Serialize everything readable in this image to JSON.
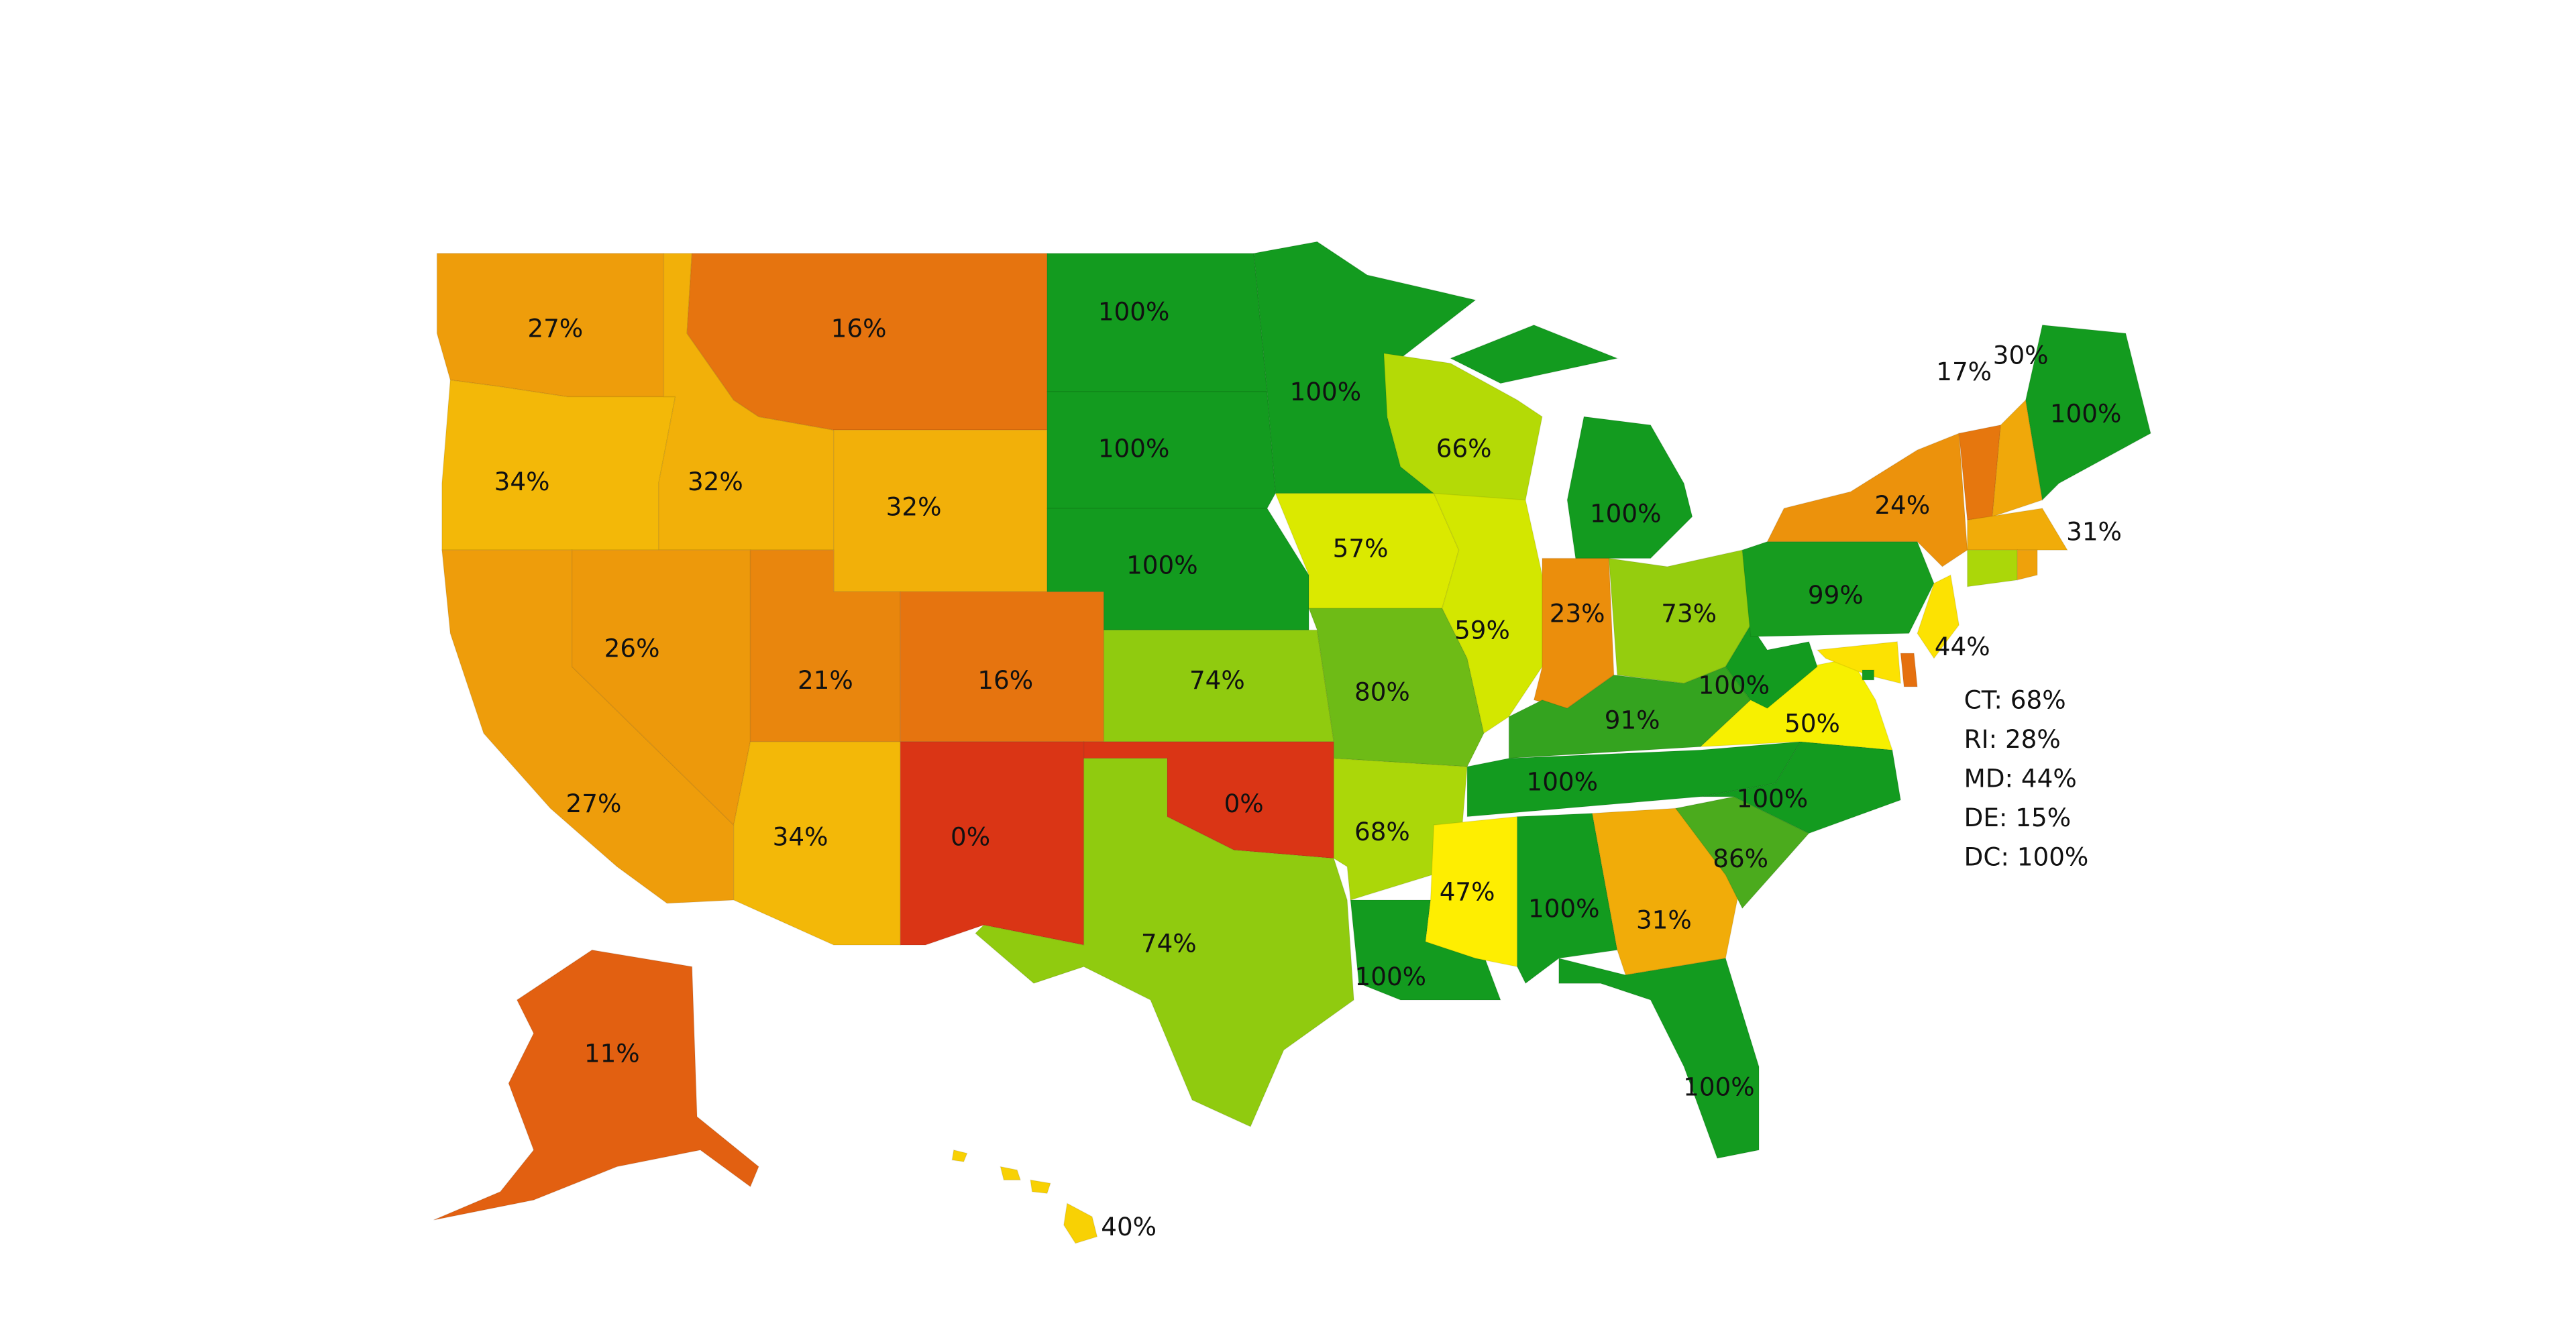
{
  "chart_data": {
    "type": "choropleth",
    "values": [
      27,
      34,
      32,
      16,
      32,
      27,
      26,
      21,
      34,
      16,
      0,
      100,
      100,
      100,
      74,
      0,
      74,
      100,
      57,
      80,
      68,
      100,
      66,
      59,
      100,
      23,
      73,
      91,
      100,
      47,
      100,
      31,
      100,
      86,
      100,
      50,
      100,
      99,
      24,
      17,
      30,
      100,
      31,
      68,
      28,
      44,
      15,
      44,
      100,
      11,
      40
    ],
    "value_labels": [
      "27%",
      "34%",
      "32%",
      "16%",
      "32%",
      "27%",
      "26%",
      "21%",
      "34%",
      "16%",
      "0%",
      "100%",
      "100%",
      "100%",
      "74%",
      "0%",
      "74%",
      "100%",
      "57%",
      "80%",
      "68%",
      "100%",
      "66%",
      "59%",
      "100%",
      "23%",
      "73%",
      "91%",
      "100%",
      "47%",
      "100%",
      "31%",
      "100%",
      "86%",
      "100%",
      "50%",
      "100%",
      "99%",
      "24%",
      "17%",
      "30%",
      "100%",
      "31%",
      null,
      null,
      "44%",
      null,
      null,
      null,
      "11%",
      "40%"
    ],
    "notes": [
      "CT: 68%",
      "RI: 28%",
      "MD: 44%",
      "DE: 15%",
      "DC: 100%"
    ],
    "color_scale": [
      [
        0,
        "#da3515"
      ],
      [
        15,
        "#e5700f"
      ],
      [
        30,
        "#f0a80a"
      ],
      [
        48,
        "#fff200"
      ],
      [
        60,
        "#cfe600"
      ],
      [
        75,
        "#8cc910"
      ],
      [
        88,
        "#3fa51f"
      ],
      [
        100,
        "#139b1f"
      ]
    ]
  }
}
